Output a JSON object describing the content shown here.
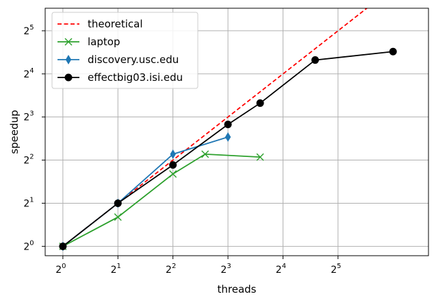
{
  "chart_data": {
    "type": "line",
    "title": "",
    "xlabel": "threads",
    "ylabel": "speedup",
    "x_scale": "log2",
    "y_scale": "log2",
    "xlim": [
      0.8,
      100
    ],
    "ylim": [
      0.86,
      46
    ],
    "x_ticks": [
      1,
      2,
      4,
      8,
      16,
      32
    ],
    "y_ticks": [
      1,
      2,
      4,
      8,
      16,
      32
    ],
    "grid": true,
    "legend_position": "upper-left",
    "series": [
      {
        "name": "theoretical",
        "color": "#ff0000",
        "style": "dashed",
        "marker": "none",
        "points": [
          [
            1,
            1
          ],
          [
            2,
            2
          ],
          [
            4,
            4
          ],
          [
            8,
            8
          ],
          [
            16,
            16
          ],
          [
            32,
            32
          ],
          [
            64,
            64
          ]
        ]
      },
      {
        "name": "laptop",
        "color": "#2ca02c",
        "style": "solid",
        "marker": "x",
        "points": [
          [
            1,
            1
          ],
          [
            2,
            1.6
          ],
          [
            4,
            3.2
          ],
          [
            6,
            4.4
          ],
          [
            12,
            4.2
          ]
        ]
      },
      {
        "name": "discovery.usc.edu",
        "color": "#1f77b4",
        "style": "solid",
        "marker": "thin-diamond",
        "points": [
          [
            1,
            1
          ],
          [
            2,
            2
          ],
          [
            4,
            4.4
          ],
          [
            8,
            5.8
          ]
        ]
      },
      {
        "name": "effectbig03.isi.edu",
        "color": "#000000",
        "style": "solid",
        "marker": "circle",
        "points": [
          [
            1,
            1
          ],
          [
            2,
            2
          ],
          [
            4,
            3.7
          ],
          [
            8,
            7.1
          ],
          [
            12,
            10
          ],
          [
            24,
            20
          ],
          [
            64,
            22.9
          ]
        ]
      }
    ]
  }
}
